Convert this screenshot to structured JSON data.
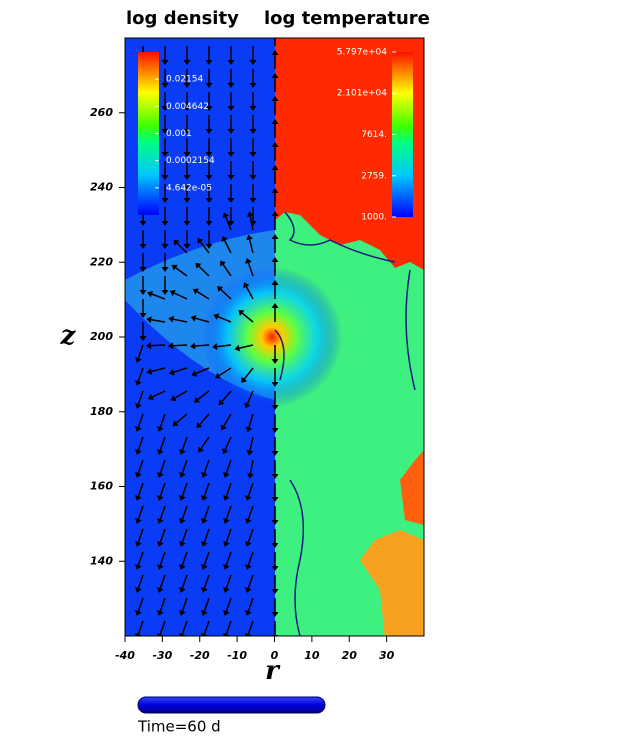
{
  "chart_data": {
    "type": "field",
    "xlabel": "r",
    "ylabel": "z",
    "xlim": [
      -40,
      40
    ],
    "ylim": [
      120,
      280
    ],
    "xticks": [
      -40,
      -30,
      -20,
      -10,
      0,
      10,
      20,
      30
    ],
    "yticks": [
      140,
      160,
      180,
      200,
      220,
      240,
      260
    ],
    "panels": [
      {
        "title": "log density",
        "colorbar": {
          "log": true,
          "clim": [
            1e-05,
            0.1
          ],
          "ticks": [
            0.02154,
            0.004642,
            0.001,
            {
              "value": 0.0002154,
              "label": "0.0002154"
            },
            {
              "value": 4.642e-05,
              "label": "4.642e-05"
            }
          ]
        }
      },
      {
        "title": "log temperature",
        "colorbar": {
          "log": true,
          "clim": [
            1000,
            57970
          ],
          "ticks": [
            {
              "value": 57970,
              "label": "5.797e+04"
            },
            {
              "value": 21010,
              "label": "2.101e+04"
            },
            {
              "value": 7614,
              "label": "7614."
            },
            {
              "value": 2759,
              "label": "2759."
            },
            {
              "value": 1000,
              "label": "1000."
            }
          ]
        }
      }
    ],
    "time_label": "Time=60 d"
  }
}
